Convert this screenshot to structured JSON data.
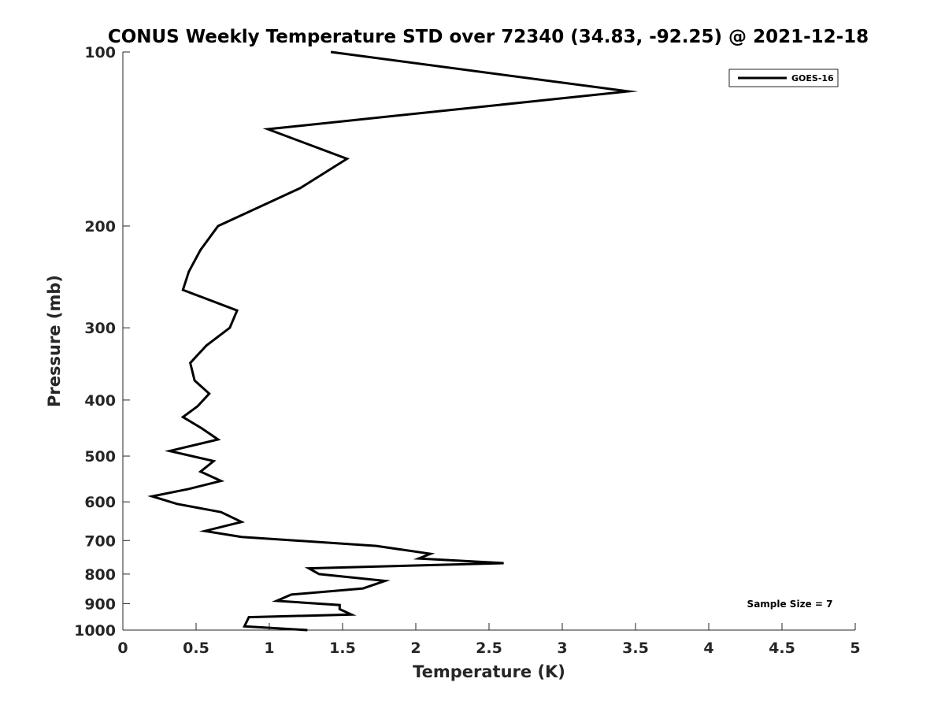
{
  "chart_data": {
    "type": "line",
    "title": "CONUS Weekly Temperature STD over 72340 (34.83, -92.25) @ 2021-12-18",
    "xlabel": "Temperature (K)",
    "ylabel": "Pressure (mb)",
    "xlim": [
      0,
      5
    ],
    "ylim": [
      100,
      1000
    ],
    "y_scale": "log",
    "y_reversed": true,
    "grid": false,
    "legend_position": "top-right",
    "x_ticks": [
      "0",
      "0.5",
      "1",
      "1.5",
      "2",
      "2.5",
      "3",
      "3.5",
      "4",
      "4.5",
      "5"
    ],
    "y_ticks": [
      "100",
      "200",
      "300",
      "400",
      "500",
      "600",
      "700",
      "800",
      "900",
      "1000"
    ],
    "series": [
      {
        "name": "GOES-16",
        "color": "#000000",
        "x": [
          1.42,
          3.45,
          0.99,
          1.53,
          1.21,
          0.65,
          0.53,
          0.45,
          0.41,
          0.78,
          0.73,
          0.57,
          0.46,
          0.49,
          0.59,
          0.51,
          0.41,
          0.54,
          0.65,
          0.32,
          0.62,
          0.53,
          0.67,
          0.45,
          0.2,
          0.37,
          0.67,
          0.81,
          0.56,
          0.81,
          1.73,
          2.1,
          2.02,
          2.6,
          1.27,
          1.34,
          1.79,
          1.64,
          1.15,
          1.05,
          1.48,
          1.48,
          1.56,
          0.86,
          0.83,
          1.26
        ],
        "y": [
          100,
          117,
          136,
          153,
          172,
          200,
          220,
          240,
          258,
          280,
          300,
          322,
          345,
          370,
          390,
          410,
          428,
          448,
          468,
          490,
          510,
          532,
          552,
          570,
          587,
          605,
          625,
          650,
          674,
          690,
          715,
          738,
          752,
          766,
          782,
          800,
          822,
          847,
          868,
          890,
          905,
          920,
          940,
          950,
          985,
          1000
        ]
      }
    ],
    "annotations": [
      "Sample Size = 7"
    ]
  }
}
